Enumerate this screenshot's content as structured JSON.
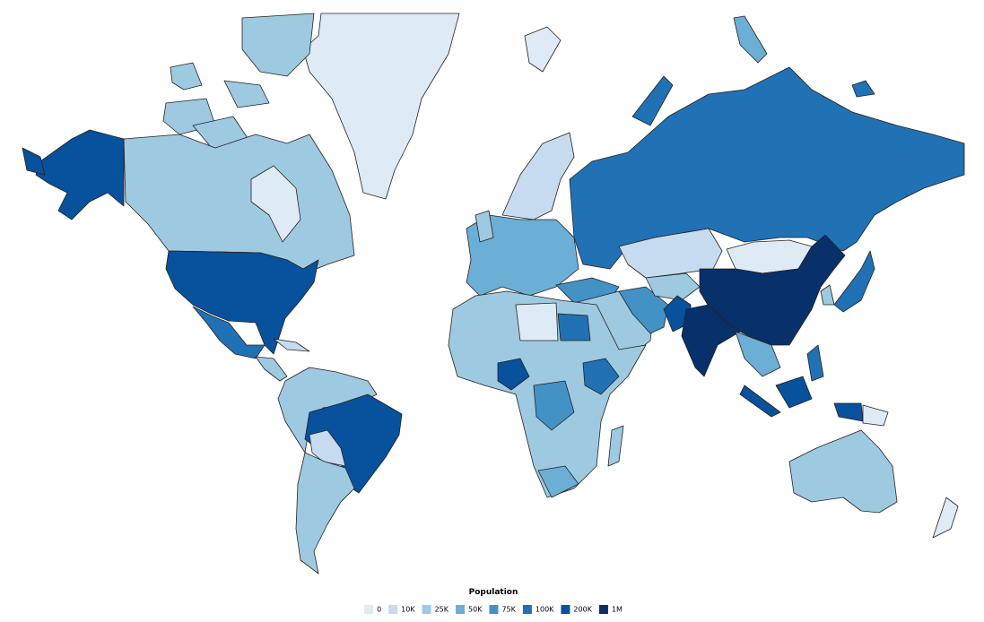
{
  "legend": {
    "title": "Population",
    "items": [
      {
        "label": "0",
        "color": "#deebf7"
      },
      {
        "label": "10K",
        "color": "#c6dbef"
      },
      {
        "label": "25K",
        "color": "#9ecae1"
      },
      {
        "label": "50K",
        "color": "#6baed6"
      },
      {
        "label": "75K",
        "color": "#4292c6"
      },
      {
        "label": "100K",
        "color": "#2171b5"
      },
      {
        "label": "200K",
        "color": "#08519c"
      },
      {
        "label": "1M",
        "color": "#08306b"
      }
    ]
  }
}
